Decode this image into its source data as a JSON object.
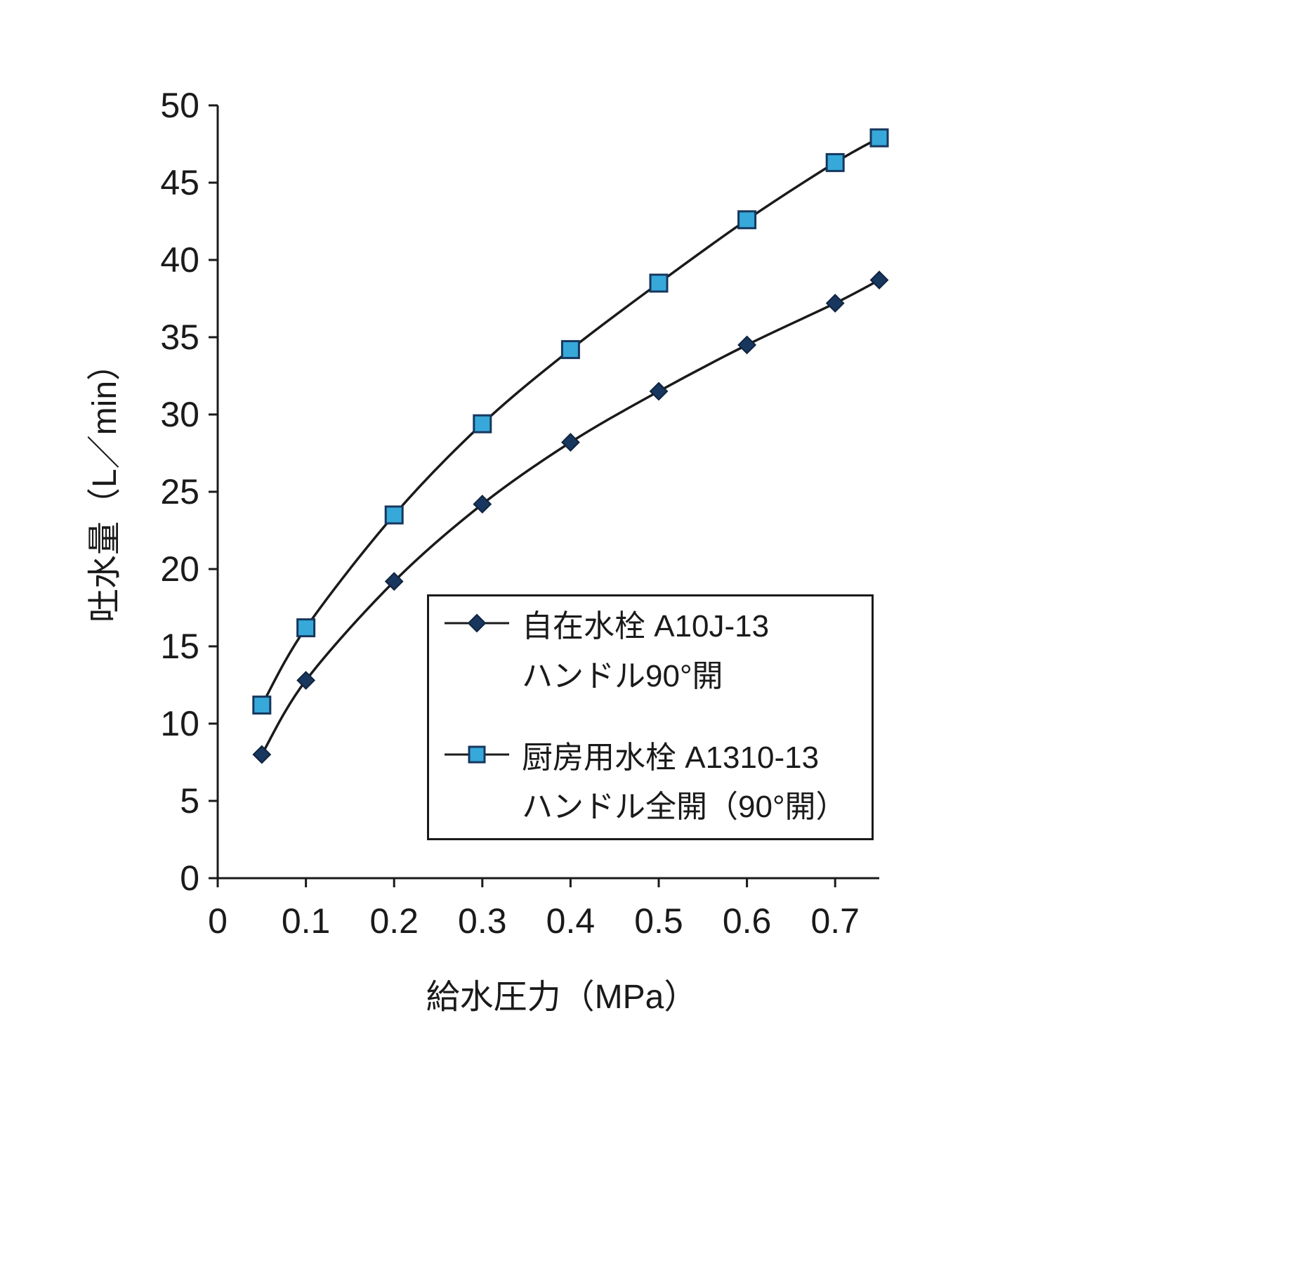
{
  "page": {
    "background_color": "#ffffff",
    "text_color": "#1a1a1a"
  },
  "chart_data": {
    "type": "line",
    "title": "",
    "xlabel": "給水圧力（MPa）",
    "ylabel": "吐水量（L／min）",
    "xlim": [
      0,
      0.75
    ],
    "ylim": [
      0,
      50
    ],
    "x_ticks": [
      0,
      0.1,
      0.2,
      0.3,
      0.4,
      0.5,
      0.6,
      0.7
    ],
    "x_tick_labels": [
      "0",
      "0.1",
      "0.2",
      "0.3",
      "0.4",
      "0.5",
      "0.6",
      "0.7"
    ],
    "y_ticks": [
      0,
      5,
      10,
      15,
      20,
      25,
      30,
      35,
      40,
      45,
      50
    ],
    "y_tick_labels": [
      "0",
      "5",
      "10",
      "15",
      "20",
      "25",
      "30",
      "35",
      "40",
      "45",
      "50"
    ],
    "grid": false,
    "legend_position": "inside-lower-right",
    "axis_color": "#1a1a1a",
    "series": [
      {
        "name": "自在水栓 A10J-13 ハンドル90°開",
        "legend_lines": [
          "自在水栓 A10J-13",
          "ハンドル90°開"
        ],
        "marker": "diamond",
        "marker_color": "#17375E",
        "marker_edge_color": "#10243E",
        "line_color": "#1a1a1a",
        "x": [
          0.05,
          0.1,
          0.2,
          0.3,
          0.4,
          0.5,
          0.6,
          0.7,
          0.75
        ],
        "y": [
          8,
          12.8,
          19.2,
          24.2,
          28.2,
          31.5,
          34.5,
          37.2,
          38.7
        ]
      },
      {
        "name": "厨房用水栓 A1310-13 ハンドル全開（90°開）",
        "legend_lines": [
          "厨房用水栓 A1310-13",
          "ハンドル全開（90°開）"
        ],
        "marker": "square",
        "marker_color": "#36A9DA",
        "marker_edge_color": "#17375E",
        "line_color": "#1a1a1a",
        "x": [
          0.05,
          0.1,
          0.2,
          0.3,
          0.4,
          0.5,
          0.6,
          0.7,
          0.75
        ],
        "y": [
          11.2,
          16.2,
          23.5,
          29.4,
          34.2,
          38.5,
          42.6,
          46.3,
          47.9
        ]
      }
    ]
  }
}
